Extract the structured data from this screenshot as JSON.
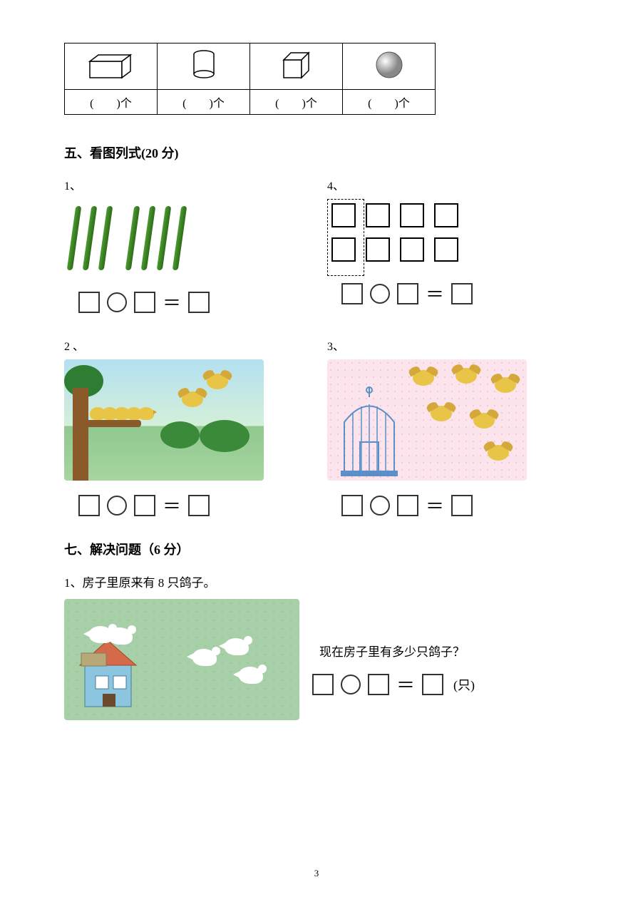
{
  "table": {
    "labels": [
      "(　　)个",
      "(　　)个",
      "(　　)个",
      "(　　)个"
    ],
    "shapes": [
      "cuboid",
      "cylinder",
      "cube",
      "sphere"
    ]
  },
  "section5": {
    "title": "五、看图列式(20 分)",
    "p1": {
      "num": "1、",
      "sticks_group1": 3,
      "sticks_group2": 4,
      "stick_color": "#4a9b2e"
    },
    "p4": {
      "num": "4、",
      "rows": 2,
      "cols": 4,
      "dashed_col_count": 1
    },
    "p2": {
      "num": "2 、",
      "branch_birds": 5,
      "flying_birds": 2
    },
    "p3": {
      "num": "3、",
      "cage_birds": 0,
      "flying_birds": 6
    }
  },
  "section7": {
    "title": "七、解决问题（6 分）",
    "q1": {
      "num_text": "1、房子里原来有 8 只鸽子。",
      "question": "现在房子里有多少只鸽子？",
      "unit": "(只)",
      "house_doves": 2,
      "flying_doves": 3
    }
  },
  "equation_glyphs": {
    "equals": "＝"
  },
  "page_number": "3",
  "colors": {
    "text": "#000000",
    "bird_yellow": "#e8c547",
    "branch": "#8b5a2b",
    "grass": "#a8d4a0",
    "cage_bg": "#fce4ec",
    "dove_bg": "#a8d0a8"
  }
}
